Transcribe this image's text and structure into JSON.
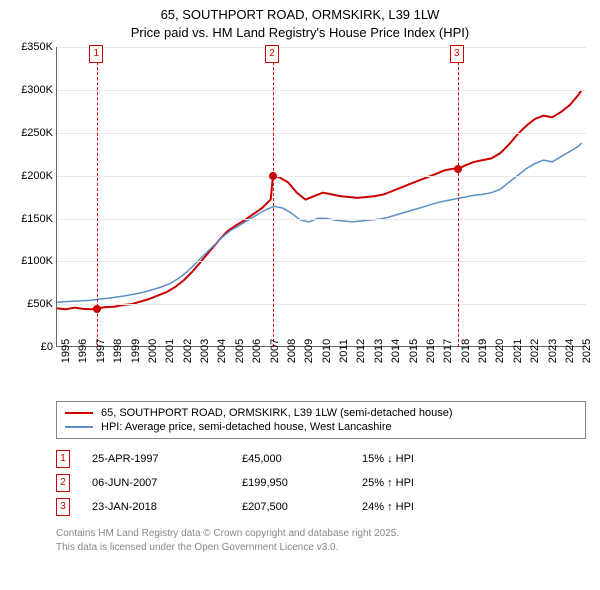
{
  "title": {
    "line1": "65, SOUTHPORT ROAD, ORMSKIRK, L39 1LW",
    "line2": "Price paid vs. HM Land Registry's House Price Index (HPI)"
  },
  "chart": {
    "type": "line",
    "background_color": "#ffffff",
    "grid_color": "#e8e8e8",
    "axis_color": "#666666",
    "ylim": [
      0,
      350000
    ],
    "ytick_step": 50000,
    "yticks": [
      {
        "v": 0,
        "label": "£0"
      },
      {
        "v": 50000,
        "label": "£50K"
      },
      {
        "v": 100000,
        "label": "£100K"
      },
      {
        "v": 150000,
        "label": "£150K"
      },
      {
        "v": 200000,
        "label": "£200K"
      },
      {
        "v": 250000,
        "label": "£250K"
      },
      {
        "v": 300000,
        "label": "£300K"
      },
      {
        "v": 350000,
        "label": "£350K"
      }
    ],
    "xlim": [
      1995,
      2025.5
    ],
    "xticks": [
      1995,
      1996,
      1997,
      1998,
      1999,
      2000,
      2001,
      2002,
      2003,
      2004,
      2005,
      2006,
      2007,
      2008,
      2009,
      2010,
      2011,
      2012,
      2013,
      2014,
      2015,
      2016,
      2017,
      2018,
      2019,
      2020,
      2021,
      2022,
      2023,
      2024,
      2025
    ],
    "series": [
      {
        "id": "price_paid",
        "label": "65, SOUTHPORT ROAD, ORMSKIRK, L39 1LW (semi-detached house)",
        "color": "#cc0000",
        "line_width": 2,
        "data": [
          [
            1995.0,
            45000
          ],
          [
            1995.5,
            44000
          ],
          [
            1996.0,
            46000
          ],
          [
            1996.5,
            44500
          ],
          [
            1997.0,
            44000
          ],
          [
            1997.3,
            45000
          ],
          [
            1997.8,
            46500
          ],
          [
            1998.3,
            47000
          ],
          [
            1998.8,
            49000
          ],
          [
            1999.3,
            50000
          ],
          [
            1999.8,
            53000
          ],
          [
            2000.3,
            56000
          ],
          [
            2000.8,
            60000
          ],
          [
            2001.3,
            64000
          ],
          [
            2001.8,
            70000
          ],
          [
            2002.3,
            78000
          ],
          [
            2002.8,
            88000
          ],
          [
            2003.3,
            100000
          ],
          [
            2003.8,
            112000
          ],
          [
            2004.3,
            124000
          ],
          [
            2004.8,
            135000
          ],
          [
            2005.3,
            142000
          ],
          [
            2005.8,
            148000
          ],
          [
            2006.3,
            155000
          ],
          [
            2006.8,
            162000
          ],
          [
            2007.3,
            172000
          ],
          [
            2007.43,
            199950
          ],
          [
            2007.8,
            198000
          ],
          [
            2008.3,
            192000
          ],
          [
            2008.8,
            180000
          ],
          [
            2009.3,
            172000
          ],
          [
            2009.8,
            176000
          ],
          [
            2010.3,
            180000
          ],
          [
            2010.8,
            178000
          ],
          [
            2011.3,
            176000
          ],
          [
            2011.8,
            175000
          ],
          [
            2012.3,
            174000
          ],
          [
            2012.8,
            175000
          ],
          [
            2013.3,
            176000
          ],
          [
            2013.8,
            178000
          ],
          [
            2014.3,
            182000
          ],
          [
            2014.8,
            186000
          ],
          [
            2015.3,
            190000
          ],
          [
            2015.8,
            194000
          ],
          [
            2016.3,
            198000
          ],
          [
            2016.8,
            202000
          ],
          [
            2017.3,
            206000
          ],
          [
            2017.8,
            208000
          ],
          [
            2018.06,
            207500
          ],
          [
            2018.5,
            212000
          ],
          [
            2019.0,
            216000
          ],
          [
            2019.5,
            218000
          ],
          [
            2020.0,
            220000
          ],
          [
            2020.5,
            226000
          ],
          [
            2021.0,
            236000
          ],
          [
            2021.5,
            248000
          ],
          [
            2022.0,
            258000
          ],
          [
            2022.5,
            266000
          ],
          [
            2023.0,
            270000
          ],
          [
            2023.5,
            268000
          ],
          [
            2024.0,
            274000
          ],
          [
            2024.5,
            282000
          ],
          [
            2025.0,
            294000
          ],
          [
            2025.2,
            300000
          ]
        ]
      },
      {
        "id": "hpi",
        "label": "HPI: Average price, semi-detached house, West Lancashire",
        "color": "#5b8fc7",
        "line_width": 1.5,
        "data": [
          [
            1995.0,
            52000
          ],
          [
            1995.5,
            53000
          ],
          [
            1996.0,
            53500
          ],
          [
            1996.5,
            54000
          ],
          [
            1997.0,
            54500
          ],
          [
            1997.5,
            56000
          ],
          [
            1998.0,
            57000
          ],
          [
            1998.5,
            58500
          ],
          [
            1999.0,
            60000
          ],
          [
            1999.5,
            62000
          ],
          [
            2000.0,
            64000
          ],
          [
            2000.5,
            67000
          ],
          [
            2001.0,
            70000
          ],
          [
            2001.5,
            74000
          ],
          [
            2002.0,
            80000
          ],
          [
            2002.5,
            88000
          ],
          [
            2003.0,
            98000
          ],
          [
            2003.5,
            108000
          ],
          [
            2004.0,
            118000
          ],
          [
            2004.5,
            128000
          ],
          [
            2005.0,
            136000
          ],
          [
            2005.5,
            142000
          ],
          [
            2006.0,
            148000
          ],
          [
            2006.5,
            154000
          ],
          [
            2007.0,
            160000
          ],
          [
            2007.5,
            164000
          ],
          [
            2008.0,
            162000
          ],
          [
            2008.5,
            156000
          ],
          [
            2009.0,
            148000
          ],
          [
            2009.5,
            146000
          ],
          [
            2010.0,
            150000
          ],
          [
            2010.5,
            150000
          ],
          [
            2011.0,
            148000
          ],
          [
            2011.5,
            147000
          ],
          [
            2012.0,
            146000
          ],
          [
            2012.5,
            147000
          ],
          [
            2013.0,
            148000
          ],
          [
            2013.5,
            149000
          ],
          [
            2014.0,
            151000
          ],
          [
            2014.5,
            154000
          ],
          [
            2015.0,
            157000
          ],
          [
            2015.5,
            160000
          ],
          [
            2016.0,
            163000
          ],
          [
            2016.5,
            166000
          ],
          [
            2017.0,
            169000
          ],
          [
            2017.5,
            171000
          ],
          [
            2018.0,
            173000
          ],
          [
            2018.5,
            175000
          ],
          [
            2019.0,
            177000
          ],
          [
            2019.5,
            178000
          ],
          [
            2020.0,
            180000
          ],
          [
            2020.5,
            184000
          ],
          [
            2021.0,
            192000
          ],
          [
            2021.5,
            200000
          ],
          [
            2022.0,
            208000
          ],
          [
            2022.5,
            214000
          ],
          [
            2023.0,
            218000
          ],
          [
            2023.5,
            216000
          ],
          [
            2024.0,
            222000
          ],
          [
            2024.5,
            228000
          ],
          [
            2025.0,
            234000
          ],
          [
            2025.2,
            238000
          ]
        ]
      }
    ],
    "markers": [
      {
        "n": "1",
        "x": 1997.32,
        "color": "#cc0000"
      },
      {
        "n": "2",
        "x": 2007.43,
        "color": "#cc0000"
      },
      {
        "n": "3",
        "x": 2018.06,
        "color": "#cc0000"
      }
    ],
    "sale_points": [
      {
        "x": 1997.32,
        "y": 45000,
        "color": "#cc0000"
      },
      {
        "x": 2007.43,
        "y": 199950,
        "color": "#cc0000"
      },
      {
        "x": 2018.06,
        "y": 207500,
        "color": "#cc0000"
      }
    ]
  },
  "sales": [
    {
      "n": "1",
      "date": "25-APR-1997",
      "price": "£45,000",
      "diff": "15% ↓ HPI",
      "color": "#cc0000"
    },
    {
      "n": "2",
      "date": "06-JUN-2007",
      "price": "£199,950",
      "diff": "25% ↑ HPI",
      "color": "#cc0000"
    },
    {
      "n": "3",
      "date": "23-JAN-2018",
      "price": "£207,500",
      "diff": "24% ↑ HPI",
      "color": "#cc0000"
    }
  ],
  "attribution": {
    "line1": "Contains HM Land Registry data © Crown copyright and database right 2025.",
    "line2": "This data is licensed under the Open Government Licence v3.0."
  }
}
